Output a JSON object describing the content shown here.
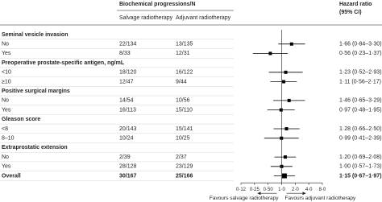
{
  "chart_data": {
    "type": "forest",
    "column_group_header": "Biochemical progressions/N",
    "column_headers": [
      "Salvage radiotherapy",
      "Adjuvant radiotherapy"
    ],
    "hr_header": [
      "Hazard ratio",
      "(95% CI)"
    ],
    "groups": [
      {
        "name": "Seminal vesicle invasion",
        "rows": [
          {
            "label": "No",
            "salvage": "22/134",
            "adjuvant": "13/135",
            "hr": 1.66,
            "lower": 0.84,
            "upper": 3.3,
            "value_label": "1·66 (0·84–3·30)"
          },
          {
            "label": "Yes",
            "salvage": "8/33",
            "adjuvant": "12/31",
            "hr": 0.56,
            "lower": 0.23,
            "upper": 1.37,
            "value_label": "0·56 (0·23–1·37)"
          }
        ]
      },
      {
        "name": "Preoperative prostate-specific antigen, ng/mL",
        "rows": [
          {
            "label": "<10",
            "salvage": "18/120",
            "adjuvant": "16/122",
            "hr": 1.23,
            "lower": 0.52,
            "upper": 2.93,
            "value_label": "1·23 (0·52–2·93)"
          },
          {
            "label": "≥10",
            "salvage": "12/47",
            "adjuvant": "9/44",
            "hr": 1.11,
            "lower": 0.56,
            "upper": 2.17,
            "value_label": "1·11 (0·56–2·17)"
          }
        ]
      },
      {
        "name": "Positive surgical margins",
        "rows": [
          {
            "label": "No",
            "salvage": "14/54",
            "adjuvant": "10/56",
            "hr": 1.46,
            "lower": 0.65,
            "upper": 3.29,
            "value_label": "1·46 (0·65–3·29)"
          },
          {
            "label": "Yes",
            "salvage": "16/113",
            "adjuvant": "15/110",
            "hr": 0.97,
            "lower": 0.48,
            "upper": 1.95,
            "value_label": "0·97 (0·48–1·95)"
          }
        ]
      },
      {
        "name": "Gleason score",
        "rows": [
          {
            "label": "<8",
            "salvage": "20/143",
            "adjuvant": "15/141",
            "hr": 1.28,
            "lower": 0.66,
            "upper": 2.5,
            "value_label": "1·28 (0·66–2·50)"
          },
          {
            "label": "8–10",
            "salvage": "10/24",
            "adjuvant": "10/25",
            "hr": 0.99,
            "lower": 0.41,
            "upper": 2.39,
            "value_label": "0·99 (0·41–2·39)"
          }
        ]
      },
      {
        "name": "Extraprostatic extension",
        "rows": [
          {
            "label": "No",
            "salvage": "2/39",
            "adjuvant": "2/37",
            "hr": 1.2,
            "lower": 0.69,
            "upper": 2.08,
            "value_label": "1·20 (0·69–2·08)"
          },
          {
            "label": "Yes",
            "salvage": "28/128",
            "adjuvant": "23/129",
            "hr": 1.0,
            "lower": 0.57,
            "upper": 1.73,
            "value_label": "1·00 (0·57–1·73)"
          }
        ]
      }
    ],
    "overall": {
      "label": "Overall",
      "salvage": "30/167",
      "adjuvant": "25/166",
      "hr": 1.15,
      "lower": 0.67,
      "upper": 1.97,
      "value_label": "1·15 (0·67–1·97)"
    },
    "log_scale": true,
    "xlim": [
      0.125,
      8
    ],
    "xticks": [
      {
        "value": 0.125,
        "label": "0·12"
      },
      {
        "value": 0.25,
        "label": "0·25"
      },
      {
        "value": 0.5,
        "label": "0·50"
      },
      {
        "value": 1,
        "label": "1·0"
      },
      {
        "value": 2,
        "label": "2·0"
      },
      {
        "value": 4,
        "label": "4·0"
      },
      {
        "value": 8,
        "label": "8·0"
      }
    ],
    "favours": [
      "Favours salvage radiotherapy",
      "Favours adjuvant radiotherapy"
    ],
    "color": "#000000"
  }
}
